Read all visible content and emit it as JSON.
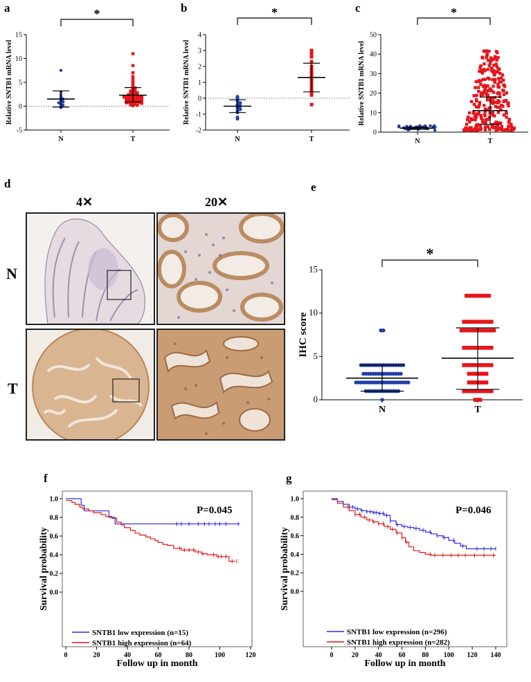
{
  "labels": {
    "a": "a",
    "b": "b",
    "c": "c",
    "d": "d",
    "e": "e",
    "f": "f",
    "g": "g"
  },
  "sig": "*",
  "panel_d": {
    "col_4x": "4✕",
    "col_20x": "20✕",
    "row_n": "N",
    "row_t": "T"
  },
  "colors": {
    "normal": "#1f3fa8",
    "tumor": "#e8141b",
    "low": "#2a2ae0",
    "high": "#e31616"
  },
  "chart_data": [
    {
      "id": "a",
      "type": "scatter",
      "ylabel": "Relative SNTB1 mRNA level",
      "categories": [
        "N",
        "T"
      ],
      "ylim": [
        -5,
        15
      ],
      "yticks": [
        -5,
        0,
        5,
        10,
        15
      ],
      "groups": [
        {
          "name": "N",
          "mean": 1.5,
          "sd_low": -0.2,
          "sd_high": 3.2,
          "values": [
            7.5,
            3.0,
            2.4,
            1.9,
            1.7,
            1.5,
            1.2,
            1.0,
            0.9,
            0.7,
            0.4,
            0.2,
            0.0,
            -0.3
          ]
        },
        {
          "name": "T",
          "mean": 2.3,
          "sd_low": 0.9,
          "sd_high": 3.9,
          "values": [
            11.0,
            8.5,
            7.0,
            6.2,
            5.6,
            5.0,
            4.6,
            4.3,
            4.0,
            3.8,
            3.6,
            3.4,
            3.2,
            3.1,
            3.0,
            2.9,
            2.8,
            2.7,
            2.6,
            2.5,
            2.5,
            2.4,
            2.3,
            2.3,
            2.2,
            2.1,
            2.1,
            2.0,
            2.0,
            1.9,
            1.9,
            1.8,
            1.8,
            1.7,
            1.7,
            1.6,
            1.6,
            1.5,
            1.5,
            1.4,
            1.4,
            1.3,
            1.3,
            1.2,
            1.2,
            1.1,
            1.1,
            1.0,
            1.0,
            0.9,
            0.9,
            0.8,
            0.8,
            0.7,
            0.6,
            0.5,
            0.4,
            0.3,
            0.2,
            0.1
          ]
        }
      ]
    },
    {
      "id": "b",
      "type": "scatter",
      "ylabel": "Relative SNTB1 mRNA level",
      "categories": [
        "N",
        "T"
      ],
      "ylim": [
        -2,
        4
      ],
      "yticks": [
        -2,
        -1,
        0,
        1,
        2,
        3,
        4
      ],
      "groups": [
        {
          "name": "N",
          "mean": -0.5,
          "sd_low": -0.9,
          "sd_high": -0.1,
          "values": [
            0.1,
            0.0,
            -0.1,
            -0.2,
            -0.3,
            -0.4,
            -0.5,
            -0.5,
            -0.6,
            -0.7,
            -0.8,
            -0.9,
            -1.2,
            -1.3
          ]
        },
        {
          "name": "T",
          "mean": 1.3,
          "sd_low": 0.4,
          "sd_high": 2.2,
          "values": [
            3.0,
            2.8,
            2.6,
            2.3,
            2.0,
            1.8,
            1.6,
            1.4,
            1.2,
            1.0,
            0.8,
            0.6,
            0.4,
            0.2,
            -0.4
          ]
        }
      ]
    },
    {
      "id": "c",
      "type": "scatter",
      "ylabel": "Relative SNTB1 mRNA level",
      "categories": [
        "N",
        "T"
      ],
      "ylim": [
        0,
        50
      ],
      "yticks": [
        0,
        10,
        20,
        30,
        40,
        50
      ],
      "groups": [
        {
          "name": "N",
          "mean": 2.0,
          "sd_low": 1.4,
          "sd_high": 2.6,
          "n": 32,
          "spread": [
            1.0,
            3.4
          ]
        },
        {
          "name": "T",
          "mean": 11,
          "sd_low": 4,
          "sd_high": 18,
          "n": 260,
          "spread": [
            1.0,
            42.0
          ]
        }
      ]
    },
    {
      "id": "e",
      "type": "scatter",
      "ylabel": "IHC score",
      "categories": [
        "N",
        "T"
      ],
      "ylim": [
        0,
        15
      ],
      "yticks": [
        0,
        5,
        10,
        15
      ],
      "groups": [
        {
          "name": "N",
          "mean": 2.5,
          "sd_low": 1.0,
          "sd_high": 4.0,
          "levels": [
            [
              8,
              2
            ],
            [
              4,
              18
            ],
            [
              3,
              16
            ],
            [
              2,
              22
            ],
            [
              1,
              14
            ],
            [
              0,
              1
            ]
          ]
        },
        {
          "name": "T",
          "mean": 4.8,
          "sd_low": 1.2,
          "sd_high": 8.3,
          "levels": [
            [
              12,
              10
            ],
            [
              9,
              12
            ],
            [
              8,
              14
            ],
            [
              6,
              12
            ],
            [
              4,
              12
            ],
            [
              3,
              8
            ],
            [
              2,
              8
            ],
            [
              1,
              12
            ],
            [
              0,
              3
            ]
          ]
        }
      ]
    },
    {
      "id": "f",
      "type": "line",
      "title": "P=0.045",
      "xlabel": "Follow up in month",
      "ylabel": "Survival probability",
      "xlim": [
        0,
        120
      ],
      "ylim": [
        0,
        1
      ],
      "xticks": [
        0,
        20,
        40,
        60,
        80,
        100,
        120
      ],
      "yticks": [
        0.0,
        0.2,
        0.4,
        0.6,
        0.8,
        1.0
      ],
      "series": [
        {
          "name": "SNTB1 low expression (n=15)",
          "x": [
            0,
            10,
            12,
            28,
            32,
            113
          ],
          "y": [
            1.0,
            0.93,
            0.87,
            0.8,
            0.73,
            0.73
          ],
          "censor": [
            72,
            75,
            80,
            86,
            90,
            93,
            97,
            100,
            104,
            112
          ]
        },
        {
          "name": "SNTB1 high expression (n=64)",
          "x": [
            0,
            4,
            6,
            9,
            11,
            15,
            18,
            23,
            26,
            30,
            33,
            36,
            38,
            42,
            45,
            48,
            52,
            55,
            58,
            60,
            63,
            66,
            70,
            75,
            80,
            84,
            88,
            92,
            98,
            102,
            106,
            110
          ],
          "y": [
            0.98,
            0.96,
            0.94,
            0.91,
            0.89,
            0.87,
            0.85,
            0.83,
            0.81,
            0.79,
            0.75,
            0.72,
            0.69,
            0.66,
            0.63,
            0.61,
            0.59,
            0.57,
            0.55,
            0.53,
            0.51,
            0.5,
            0.47,
            0.45,
            0.45,
            0.43,
            0.41,
            0.4,
            0.38,
            0.38,
            0.33,
            0.33
          ],
          "censor": [
            74,
            77,
            80,
            83,
            86,
            89,
            96,
            99,
            101,
            104,
            108,
            111
          ]
        }
      ]
    },
    {
      "id": "g",
      "type": "line",
      "title": "P=0.046",
      "xlabel": "Follow up in month",
      "ylabel": "Survival probability",
      "xlim": [
        0,
        140
      ],
      "ylim": [
        0,
        1
      ],
      "xticks": [
        0,
        20,
        40,
        60,
        80,
        100,
        120,
        140
      ],
      "yticks": [
        0.0,
        0.2,
        0.4,
        0.6,
        0.8,
        1.0
      ],
      "series": [
        {
          "name": "SNTB1 low expression (n=296)",
          "x": [
            0,
            5,
            10,
            15,
            20,
            25,
            30,
            35,
            40,
            45,
            50,
            55,
            60,
            65,
            70,
            75,
            80,
            85,
            90,
            95,
            100,
            105,
            110,
            115,
            120,
            125,
            130,
            140
          ],
          "y": [
            1.0,
            0.97,
            0.94,
            0.91,
            0.89,
            0.87,
            0.86,
            0.85,
            0.84,
            0.82,
            0.76,
            0.72,
            0.7,
            0.69,
            0.68,
            0.66,
            0.64,
            0.62,
            0.6,
            0.58,
            0.55,
            0.52,
            0.49,
            0.46,
            0.46,
            0.46,
            0.46,
            0.46
          ],
          "censor": [
            18,
            22,
            26,
            30,
            33,
            36,
            38,
            41,
            44,
            47,
            50,
            56,
            62,
            67,
            72,
            78,
            84,
            90,
            96,
            104,
            112,
            124,
            130,
            136,
            140
          ]
        },
        {
          "name": "SNTB1 high expression (n=282)",
          "x": [
            0,
            5,
            10,
            15,
            20,
            25,
            30,
            35,
            40,
            45,
            50,
            55,
            60,
            63,
            66,
            70,
            75,
            80,
            85,
            90,
            100,
            110,
            120,
            130,
            140
          ],
          "y": [
            0.99,
            0.95,
            0.91,
            0.87,
            0.83,
            0.8,
            0.77,
            0.75,
            0.73,
            0.7,
            0.67,
            0.63,
            0.58,
            0.53,
            0.48,
            0.44,
            0.42,
            0.4,
            0.39,
            0.39,
            0.39,
            0.39,
            0.39,
            0.39,
            0.39
          ],
          "censor": [
            14,
            20,
            24,
            28,
            32,
            36,
            40,
            44,
            48,
            52,
            56,
            60,
            64,
            84,
            88,
            95,
            102,
            108,
            114,
            122,
            130,
            138
          ]
        }
      ]
    }
  ]
}
